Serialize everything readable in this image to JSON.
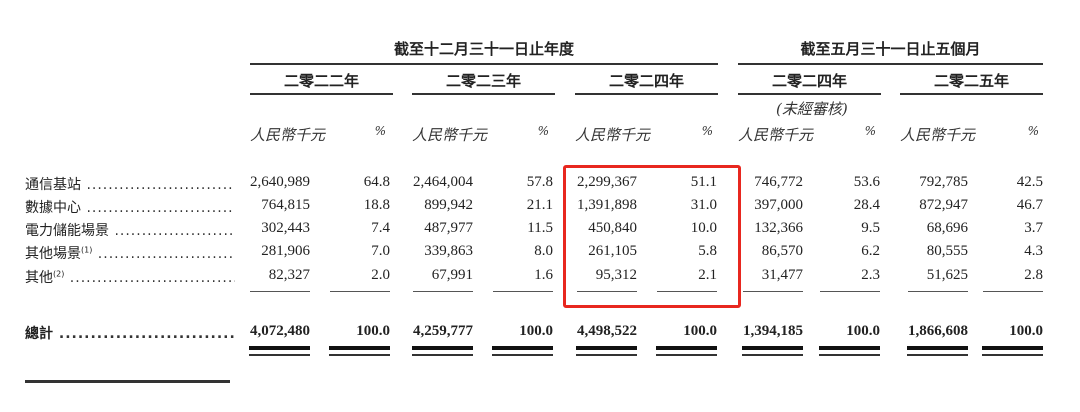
{
  "header": {
    "group_year": "截至十二月三十一日止年度",
    "group_period": "截至五月三十一日止五個月",
    "years": [
      "二零二二年",
      "二零二三年",
      "二零二四年",
      "二零二四年",
      "二零二五年"
    ],
    "unaudited_note": "(未經審核)",
    "unit_amount": "人民幣千元",
    "unit_percent": "%"
  },
  "rows": [
    {
      "label": "通信基站",
      "sup": "",
      "values": [
        "2,640,989",
        "64.8",
        "2,464,004",
        "57.8",
        "2,299,367",
        "51.1",
        "746,772",
        "53.6",
        "792,785",
        "42.5"
      ]
    },
    {
      "label": "數據中心",
      "sup": "",
      "values": [
        "764,815",
        "18.8",
        "899,942",
        "21.1",
        "1,391,898",
        "31.0",
        "397,000",
        "28.4",
        "872,947",
        "46.7"
      ]
    },
    {
      "label": "電力儲能場景",
      "sup": "",
      "values": [
        "302,443",
        "7.4",
        "487,977",
        "11.5",
        "450,840",
        "10.0",
        "132,366",
        "9.5",
        "68,696",
        "3.7"
      ]
    },
    {
      "label": "其他場景",
      "sup": "(1)",
      "values": [
        "281,906",
        "7.0",
        "339,863",
        "8.0",
        "261,105",
        "5.8",
        "86,570",
        "6.2",
        "80,555",
        "4.3"
      ]
    },
    {
      "label": "其他",
      "sup": "(2)",
      "values": [
        "82,327",
        "2.0",
        "67,991",
        "1.6",
        "95,312",
        "2.1",
        "31,477",
        "2.3",
        "51,625",
        "2.8"
      ]
    }
  ],
  "total": {
    "label": "總計",
    "values": [
      "4,072,480",
      "100.0",
      "4,259,777",
      "100.0",
      "4,498,522",
      "100.0",
      "1,394,185",
      "100.0",
      "1,866,608",
      "100.0"
    ]
  },
  "highlight": {
    "color": "#e8271f",
    "column": "二零二四年 (截至十二月三十一日止年度)"
  }
}
